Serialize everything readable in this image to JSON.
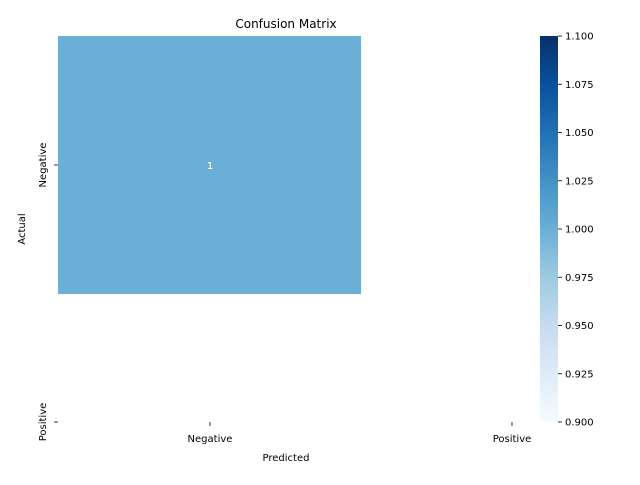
{
  "chart_data": {
    "type": "heatmap",
    "title": "Confusion Matrix",
    "xlabel": "Predicted",
    "ylabel": "Actual",
    "x_categories": [
      "Negative",
      "Positive"
    ],
    "y_categories": [
      "Negative",
      "Positive"
    ],
    "cells": [
      {
        "row": 0,
        "col": 0,
        "value": 1,
        "label": "1"
      }
    ],
    "colormap": "Blues",
    "cell_color": "#6baed6",
    "colorbar": {
      "range": [
        0.9,
        1.1
      ],
      "ticks": [
        "0.900",
        "0.925",
        "0.950",
        "0.975",
        "1.000",
        "1.025",
        "1.050",
        "1.075",
        "1.100"
      ]
    }
  }
}
